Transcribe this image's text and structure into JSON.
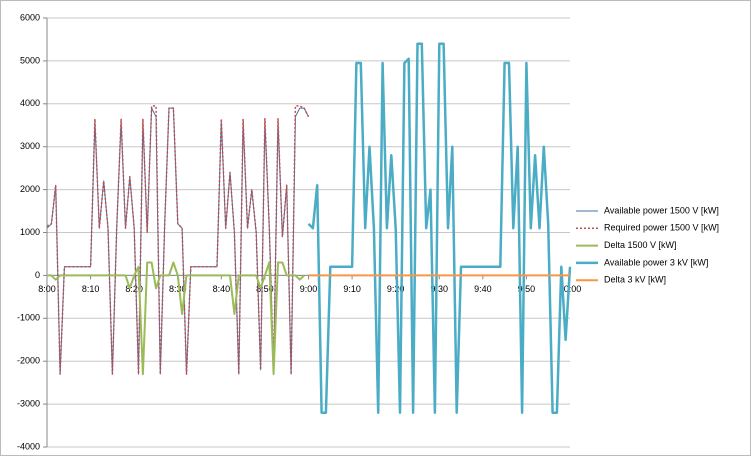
{
  "chart_data": {
    "type": "line",
    "x": [
      0,
      1,
      2,
      3,
      4,
      5,
      6,
      7,
      8,
      9,
      10,
      11,
      12,
      13,
      14,
      15,
      16,
      17,
      18,
      19,
      20,
      21,
      22,
      23,
      24,
      25,
      26,
      27,
      28,
      29,
      30,
      31,
      32,
      33,
      34,
      35,
      36,
      37,
      38,
      39,
      40,
      41,
      42,
      43,
      44,
      45,
      46,
      47,
      48,
      49,
      50,
      51,
      52,
      53,
      54,
      55,
      56,
      57,
      58,
      59,
      60,
      61,
      62,
      63,
      64,
      65,
      66,
      67,
      68,
      69,
      70,
      71,
      72,
      73,
      74,
      75,
      76,
      77,
      78,
      79,
      80,
      81,
      82,
      83,
      84,
      85,
      86,
      87,
      88,
      89,
      90,
      91,
      92,
      93,
      94,
      95,
      96,
      97,
      98,
      99,
      100,
      101,
      102,
      103,
      104,
      105,
      106,
      107,
      108,
      109,
      110,
      111,
      112,
      113,
      114,
      115,
      116,
      117,
      118,
      119,
      120
    ],
    "xlim": [
      0,
      120
    ],
    "xticks": [
      {
        "value": 0,
        "label": "8:00"
      },
      {
        "value": 10,
        "label": "8:10"
      },
      {
        "value": 20,
        "label": "8:20"
      },
      {
        "value": 30,
        "label": "8:30"
      },
      {
        "value": 40,
        "label": "8:40"
      },
      {
        "value": 50,
        "label": "8:50"
      },
      {
        "value": 60,
        "label": "9:00"
      },
      {
        "value": 70,
        "label": "9:10"
      },
      {
        "value": 80,
        "label": "9:20"
      },
      {
        "value": 90,
        "label": "9:30"
      },
      {
        "value": 100,
        "label": "9:40"
      },
      {
        "value": 110,
        "label": "9:50"
      },
      {
        "value": 120,
        "label": "10:00"
      }
    ],
    "ylim": [
      -4000,
      6000
    ],
    "yticks": [
      -4000,
      -3000,
      -2000,
      -1000,
      0,
      1000,
      2000,
      3000,
      4000,
      5000,
      6000
    ],
    "grid": true,
    "legend": "right",
    "series": [
      {
        "name": "Available power 1500 V [kW]",
        "color": "#4a6fa5",
        "style": "solid",
        "width": 1,
        "values": [
          1100,
          1200,
          2100,
          -2300,
          200,
          200,
          200,
          200,
          200,
          200,
          200,
          3600,
          1100,
          2200,
          1100,
          -2300,
          1100,
          3600,
          1100,
          2300,
          1100,
          -2300,
          3600,
          1000,
          3900,
          3700,
          -2300,
          1200,
          3900,
          3900,
          1200,
          1100,
          -2300,
          200,
          200,
          200,
          200,
          200,
          200,
          200,
          3600,
          1100,
          2400,
          1000,
          -2300,
          3600,
          1100,
          2000,
          1000,
          -2200,
          3600,
          1100,
          -2200,
          3600,
          900,
          2100,
          -2300,
          3700,
          3900,
          3900,
          3700,
          null,
          null,
          null,
          null,
          null,
          null,
          null,
          null,
          null,
          null,
          null,
          null,
          null,
          null,
          null,
          null,
          null,
          null,
          null,
          null,
          null,
          null,
          null,
          null,
          null,
          null,
          null,
          null,
          null,
          null,
          null,
          null,
          null,
          null,
          null,
          null,
          null,
          null,
          null,
          null,
          null,
          null,
          null,
          null,
          null,
          null,
          null,
          null,
          null,
          null,
          null,
          null,
          null,
          null,
          null,
          null,
          null,
          null,
          null,
          null
        ]
      },
      {
        "name": "Required power 1500 V [kW]",
        "color": "#c0504d",
        "style": "dotted",
        "width": 1.5,
        "values": [
          1150,
          1200,
          2100,
          -2300,
          200,
          200,
          200,
          200,
          200,
          200,
          200,
          3650,
          1100,
          2200,
          1100,
          -2300,
          1100,
          3650,
          1100,
          2300,
          1100,
          -2300,
          3650,
          1000,
          3950,
          3950,
          -2300,
          1200,
          3900,
          3900,
          1200,
          1100,
          -2300,
          200,
          200,
          200,
          200,
          200,
          200,
          200,
          3650,
          1100,
          2400,
          1000,
          -2300,
          3650,
          1100,
          2000,
          1000,
          -2200,
          3650,
          1100,
          -2200,
          3650,
          900,
          2100,
          -2300,
          3950,
          3950,
          3900,
          3700,
          null,
          null,
          null,
          null,
          null,
          null,
          null,
          null,
          null,
          null,
          null,
          null,
          null,
          null,
          null,
          null,
          null,
          null,
          null,
          null,
          null,
          null,
          null,
          null,
          null,
          null,
          null,
          null,
          null,
          null,
          null,
          null,
          null,
          null,
          null,
          null,
          null,
          null,
          null,
          null,
          null,
          null,
          null,
          null,
          null,
          null,
          null,
          null,
          null,
          null,
          null,
          null,
          null,
          null,
          null,
          null,
          null,
          null,
          null,
          null
        ]
      },
      {
        "name": "Delta 1500 V [kW]",
        "color": "#9bbb59",
        "style": "solid",
        "width": 2,
        "values": [
          0,
          0,
          -100,
          0,
          0,
          0,
          0,
          0,
          0,
          0,
          0,
          0,
          0,
          0,
          0,
          0,
          0,
          0,
          0,
          -300,
          0,
          200,
          -2300,
          300,
          300,
          -300,
          0,
          0,
          0,
          300,
          0,
          -900,
          0,
          0,
          0,
          0,
          0,
          0,
          0,
          0,
          0,
          0,
          0,
          -900,
          0,
          0,
          0,
          0,
          0,
          -300,
          0,
          300,
          -2300,
          300,
          300,
          0,
          0,
          0,
          -100,
          0,
          null,
          null,
          null,
          null,
          null,
          null,
          null,
          null,
          null,
          null,
          null,
          null,
          null,
          null,
          null,
          null,
          null,
          null,
          null,
          null,
          null,
          null,
          null,
          null,
          null,
          null,
          null,
          null,
          null,
          null,
          null,
          null,
          null,
          null,
          null,
          null,
          null,
          null,
          null,
          null,
          null,
          null,
          null,
          null,
          null,
          null,
          null,
          null,
          null,
          null,
          null,
          null,
          null,
          null,
          null,
          null,
          null,
          null,
          null,
          null,
          null
        ]
      },
      {
        "name": "Available power 3 kV [kW]",
        "color": "#4bacc6",
        "style": "solid",
        "width": 2.5,
        "values": [
          null,
          null,
          null,
          null,
          null,
          null,
          null,
          null,
          null,
          null,
          null,
          null,
          null,
          null,
          null,
          null,
          null,
          null,
          null,
          null,
          null,
          null,
          null,
          null,
          null,
          null,
          null,
          null,
          null,
          null,
          null,
          null,
          null,
          null,
          null,
          null,
          null,
          null,
          null,
          null,
          null,
          null,
          null,
          null,
          null,
          null,
          null,
          null,
          null,
          null,
          null,
          null,
          null,
          null,
          null,
          null,
          null,
          null,
          null,
          null,
          1200,
          1100,
          2100,
          -3200,
          -3200,
          200,
          200,
          200,
          200,
          200,
          200,
          4950,
          4950,
          1100,
          3000,
          1100,
          -3200,
          4950,
          1100,
          2800,
          1100,
          -3200,
          4950,
          5050,
          -3200,
          5400,
          5400,
          1100,
          2000,
          -3200,
          5400,
          5400,
          1100,
          3000,
          -3200,
          200,
          200,
          200,
          200,
          200,
          200,
          200,
          200,
          200,
          200,
          4950,
          4950,
          1100,
          3000,
          -3200,
          4950,
          1100,
          2800,
          1100,
          3000,
          1200,
          -3200,
          -3200,
          200,
          -1500,
          200
        ]
      },
      {
        "name": "Delta 3 kV [kW]",
        "color": "#f79646",
        "style": "solid",
        "width": 2,
        "values": [
          null,
          null,
          null,
          null,
          null,
          null,
          null,
          null,
          null,
          null,
          null,
          null,
          null,
          null,
          null,
          null,
          null,
          null,
          null,
          null,
          null,
          null,
          null,
          null,
          null,
          null,
          null,
          null,
          null,
          null,
          null,
          null,
          null,
          null,
          null,
          null,
          null,
          null,
          null,
          null,
          null,
          null,
          null,
          null,
          null,
          null,
          null,
          null,
          null,
          null,
          null,
          null,
          null,
          null,
          null,
          null,
          null,
          null,
          null,
          null,
          0,
          0,
          0,
          0,
          0,
          0,
          0,
          0,
          0,
          0,
          0,
          0,
          0,
          0,
          0,
          0,
          0,
          0,
          0,
          0,
          0,
          0,
          0,
          0,
          0,
          0,
          0,
          0,
          0,
          0,
          0,
          0,
          0,
          0,
          0,
          0,
          0,
          0,
          0,
          0,
          0,
          0,
          0,
          0,
          0,
          0,
          0,
          0,
          0,
          0,
          0,
          0,
          0,
          0,
          0,
          0,
          0,
          0,
          0,
          0,
          0
        ]
      }
    ]
  }
}
